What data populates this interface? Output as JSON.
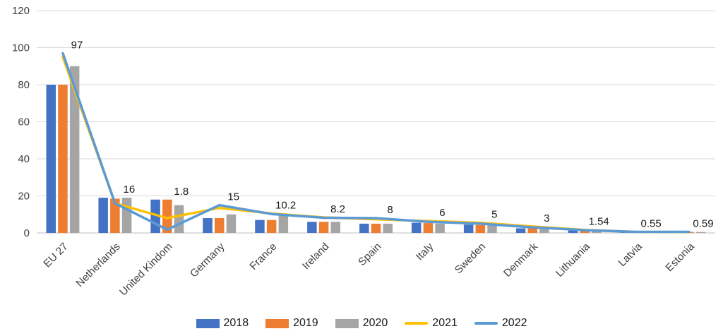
{
  "chart_data": {
    "type": "bar",
    "title": "",
    "xlabel": "",
    "ylabel": "",
    "categories": [
      "EU 27",
      "Netherlands",
      "United Kindom",
      "Germany",
      "France",
      "Ireland",
      "Spain",
      "Italy",
      "Sweden",
      "Denmark",
      "Lithuania",
      "Latvia",
      "Estonia"
    ],
    "bar_series": [
      {
        "name": "2018",
        "color": "#4472C4",
        "values": [
          80,
          19,
          18,
          8,
          7,
          6,
          5,
          5.5,
          4.5,
          2.5,
          1.8,
          0.4,
          0.5
        ]
      },
      {
        "name": "2019",
        "color": "#ED7D31",
        "values": [
          80,
          18.5,
          18,
          8,
          7,
          6,
          5,
          5.3,
          4.3,
          3,
          1.8,
          0.4,
          0.5
        ]
      },
      {
        "name": "2020",
        "color": "#A5A5A5",
        "values": [
          90,
          19,
          15,
          10,
          10,
          6,
          5,
          5,
          5,
          3.3,
          1.8,
          0.4,
          0.5
        ]
      }
    ],
    "line_series": [
      {
        "name": "2021",
        "color": "#FFC000",
        "values": [
          95,
          16,
          8,
          13.5,
          10.5,
          8.4,
          7.4,
          6.4,
          5.5,
          3.5,
          1.6,
          0.55,
          0.5
        ],
        "data_labels": null
      },
      {
        "name": "2022",
        "color": "#5B9BD5",
        "values": [
          97,
          16,
          1.8,
          15,
          10.2,
          8.2,
          8,
          6,
          5,
          3,
          1.54,
          0.55,
          0.59
        ],
        "data_labels": [
          "97",
          "16",
          "1.8",
          "15",
          "10.2",
          "8.2",
          "8",
          "6",
          "5",
          "3",
          "1.54",
          "0.55",
          "0.59"
        ]
      }
    ],
    "ylim": [
      0,
      120
    ],
    "yticks": [
      0,
      20,
      40,
      60,
      80,
      100,
      120
    ],
    "grid": true,
    "legend_position": "bottom",
    "legend_entries": [
      "2018",
      "2019",
      "2020",
      "2021",
      "2022"
    ]
  },
  "colors": {
    "background": "#FFFFFF",
    "gridline": "#D9D9D9",
    "zero_line": "#BFBFBF",
    "tick_text": "#404040",
    "data_label_text": "#1A1A1A"
  }
}
